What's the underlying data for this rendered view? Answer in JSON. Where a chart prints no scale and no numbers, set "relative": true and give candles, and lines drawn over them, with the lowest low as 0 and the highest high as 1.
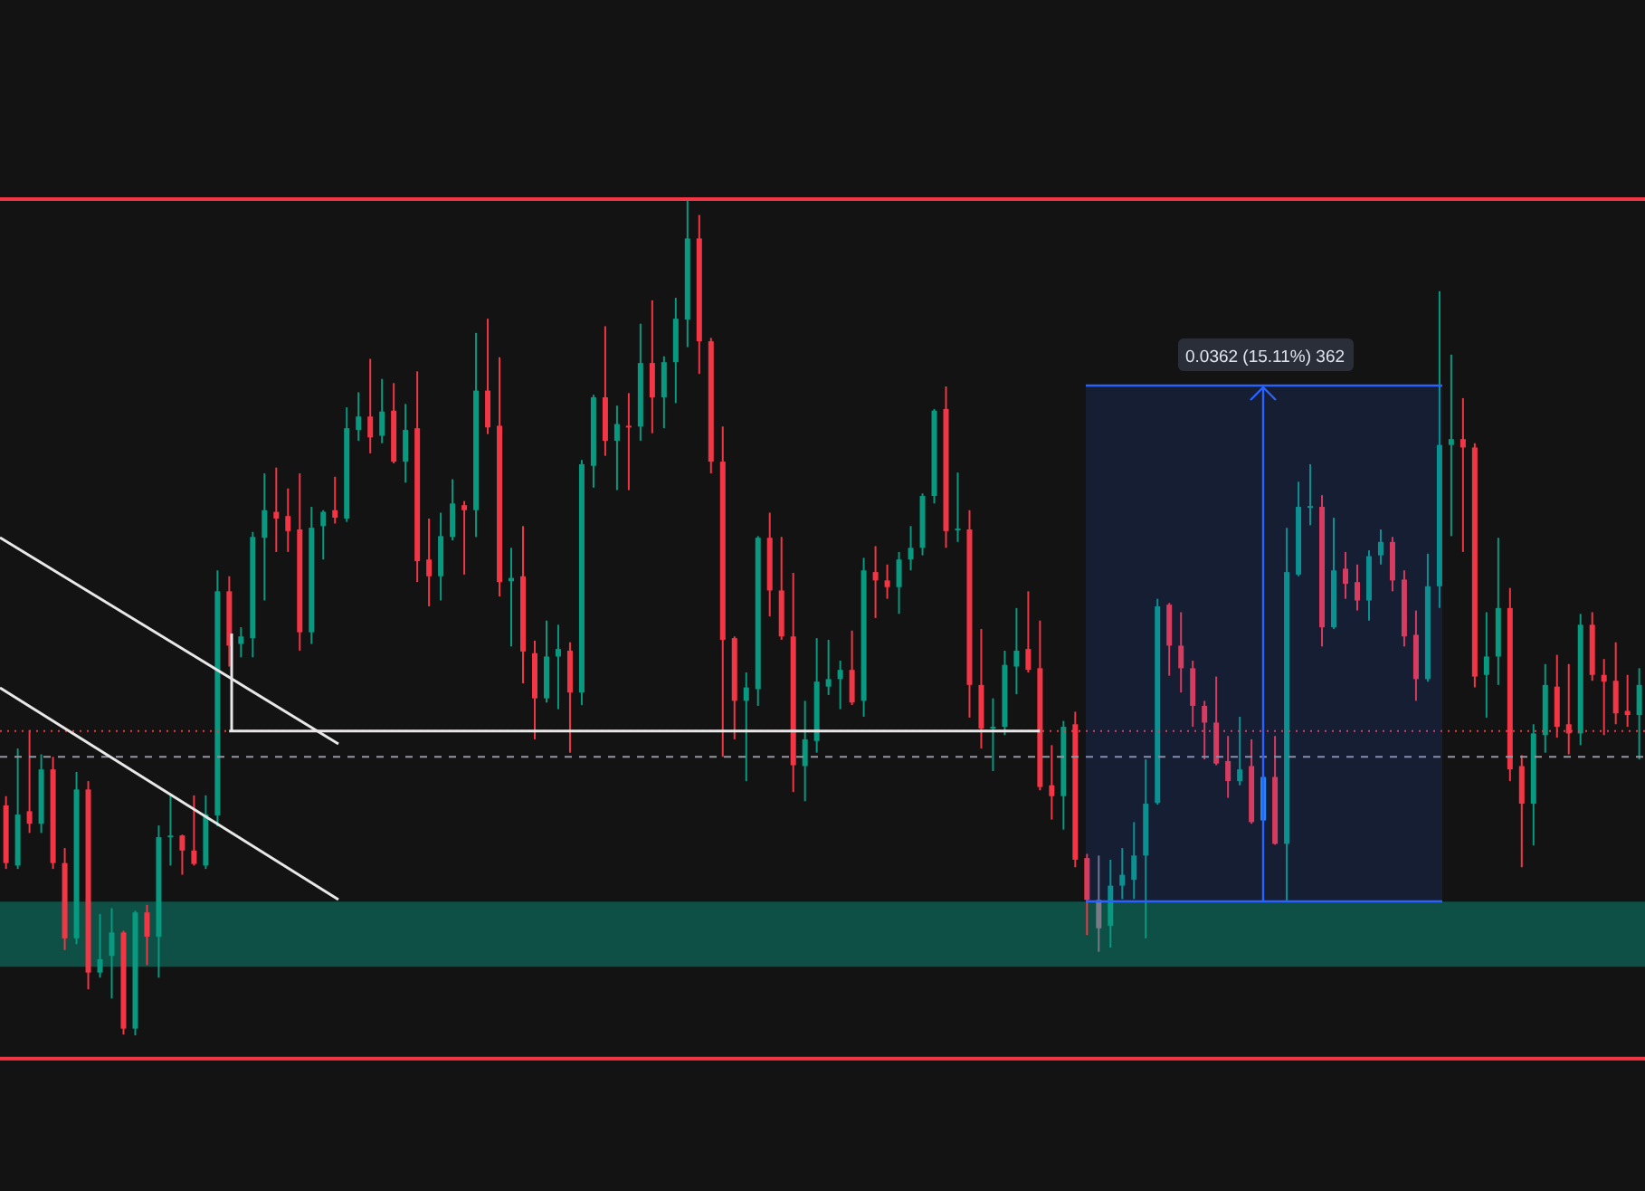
{
  "chart_data": {
    "type": "candlestick",
    "relative": true,
    "series": [
      {
        "type": "line",
        "color": "#e8e8e8",
        "values": [
          null,
          null,
          null,
          null,
          null,
          null,
          null,
          null,
          null,
          null,
          null,
          null,
          null,
          null,
          null,
          null,
          null,
          null,
          null,
          0.364,
          0.364,
          0.364,
          0.364,
          0.364,
          0.364,
          0.364,
          0.364,
          0.364,
          0.364,
          0.364,
          0.364,
          0.364,
          0.364,
          0.364,
          0.364,
          0.364,
          0.364,
          0.364,
          0.364,
          0.364,
          0.364,
          0.364,
          0.364,
          0.364,
          0.364,
          0.364,
          0.364,
          0.364,
          0.364,
          0.364,
          0.364,
          0.364,
          0.364,
          0.364,
          0.364,
          0.364,
          0.364,
          0.364,
          0.364,
          0.364,
          0.364,
          0.364,
          0.364,
          0.364,
          0.364,
          0.364,
          0.364,
          0.364,
          0.364,
          0.364,
          0.364,
          0.364,
          0.364,
          0.364,
          0.364,
          0.364,
          0.364,
          0.364,
          0.364,
          0.364,
          0.364,
          0.364,
          0.364,
          0.364,
          0.364,
          0.364,
          0.364,
          0.364,
          0.364,
          null,
          null,
          null,
          null,
          null,
          null,
          null,
          null,
          null,
          null,
          null,
          null,
          null,
          null,
          null,
          null,
          null,
          null,
          null,
          null,
          null,
          null,
          null,
          null,
          null,
          null,
          null,
          null,
          null,
          null,
          null,
          null,
          null,
          null,
          null,
          null,
          null,
          null,
          null,
          null,
          null,
          null,
          null,
          null,
          null,
          null,
          null,
          null,
          null,
          null,
          null
        ]
      }
    ],
    "categories": [
      null,
      null,
      null,
      null,
      null,
      null,
      null,
      null,
      null,
      null,
      null,
      null,
      null,
      null,
      null,
      null,
      null,
      null,
      null,
      null,
      null,
      null,
      null,
      null,
      null,
      null,
      null,
      null,
      null,
      null,
      null,
      null,
      null,
      null,
      null,
      null,
      null,
      null,
      null,
      null,
      null,
      null,
      null,
      null,
      null,
      null,
      null,
      null,
      null,
      null,
      null,
      null,
      null,
      null,
      null,
      null,
      null,
      null,
      null,
      null,
      null,
      null,
      null,
      null,
      null,
      null,
      null,
      null,
      null,
      null,
      null,
      null,
      null,
      null,
      null,
      null,
      null,
      null,
      null,
      null,
      null,
      null,
      null,
      null,
      null,
      null,
      null,
      null,
      null,
      null,
      null,
      null,
      null,
      null,
      null,
      null,
      null,
      null,
      null,
      null,
      null,
      null,
      null,
      null,
      null,
      null,
      null,
      null,
      null,
      null,
      null,
      null,
      null,
      null,
      null,
      null,
      null,
      null,
      null,
      null,
      null,
      null,
      null,
      null,
      null,
      null,
      null,
      null,
      null,
      null,
      null,
      null,
      null,
      null,
      null,
      null,
      null,
      null,
      null,
      null
    ],
    "ohlc": [
      [
        0.275,
        0.286,
        0.199,
        0.206
      ],
      [
        0.203,
        0.343,
        0.199,
        0.264
      ],
      [
        0.268,
        0.365,
        0.242,
        0.253
      ],
      [
        0.253,
        0.336,
        0.242,
        0.318
      ],
      [
        0.318,
        0.333,
        0.199,
        0.206
      ],
      [
        0.206,
        0.224,
        0.102,
        0.116
      ],
      [
        0.116,
        0.315,
        0.109,
        0.294
      ],
      [
        0.294,
        0.304,
        0.055,
        0.075
      ],
      [
        0.075,
        0.145,
        0.069,
        0.091
      ],
      [
        0.095,
        0.152,
        0.044,
        0.123
      ],
      [
        0.123,
        0.125,
        0.001,
        0.008
      ],
      [
        0.008,
        0.149,
        0,
        0.147
      ],
      [
        0.147,
        0.156,
        0.084,
        0.118
      ],
      [
        0.118,
        0.251,
        0.069,
        0.237
      ],
      [
        0.237,
        0.289,
        0.203,
        0.239
      ],
      [
        0.239,
        0.24,
        0.192,
        0.221
      ],
      [
        0.221,
        0.287,
        0.203,
        0.205
      ],
      [
        0.203,
        0.287,
        0.199,
        0.264
      ],
      [
        0.263,
        0.556,
        0.25,
        0.531
      ],
      [
        0.531,
        0.549,
        0.441,
        0.466
      ],
      [
        0.468,
        0.488,
        0.452,
        0.477
      ],
      [
        0.475,
        0.602,
        0.452,
        0.596
      ],
      [
        0.595,
        0.672,
        0.52,
        0.628
      ],
      [
        0.626,
        0.679,
        0.578,
        0.618
      ],
      [
        0.621,
        0.654,
        0.578,
        0.603
      ],
      [
        0.605,
        0.672,
        0.46,
        0.482
      ],
      [
        0.482,
        0.632,
        0.468,
        0.607
      ],
      [
        0.609,
        0.628,
        0.569,
        0.626
      ],
      [
        0.628,
        0.668,
        0.612,
        0.619
      ],
      [
        0.618,
        0.751,
        0.614,
        0.726
      ],
      [
        0.724,
        0.769,
        0.711,
        0.74
      ],
      [
        0.74,
        0.809,
        0.696,
        0.715
      ],
      [
        0.717,
        0.785,
        0.708,
        0.746
      ],
      [
        0.747,
        0.78,
        0.684,
        0.686
      ],
      [
        0.686,
        0.755,
        0.661,
        0.724
      ],
      [
        0.726,
        0.794,
        0.542,
        0.567
      ],
      [
        0.569,
        0.618,
        0.513,
        0.549
      ],
      [
        0.549,
        0.625,
        0.52,
        0.597
      ],
      [
        0.596,
        0.665,
        0.592,
        0.636
      ],
      [
        0.634,
        0.639,
        0.551,
        0.628
      ],
      [
        0.628,
        0.84,
        0.596,
        0.771
      ],
      [
        0.771,
        0.857,
        0.719,
        0.727
      ],
      [
        0.729,
        0.811,
        0.525,
        0.542
      ],
      [
        0.543,
        0.583,
        0.465,
        0.547
      ],
      [
        0.549,
        0.609,
        0.421,
        0.459
      ],
      [
        0.457,
        0.472,
        0.354,
        0.403
      ],
      [
        0.403,
        0.496,
        0.398,
        0.453
      ],
      [
        0.453,
        0.491,
        0.39,
        0.462
      ],
      [
        0.46,
        0.47,
        0.338,
        0.41
      ],
      [
        0.41,
        0.688,
        0.395,
        0.683
      ],
      [
        0.681,
        0.766,
        0.655,
        0.763
      ],
      [
        0.763,
        0.848,
        0.693,
        0.711
      ],
      [
        0.711,
        0.753,
        0.652,
        0.731
      ],
      [
        0.729,
        0.768,
        0.652,
        0.728
      ],
      [
        0.728,
        0.851,
        0.711,
        0.804
      ],
      [
        0.804,
        0.879,
        0.72,
        0.763
      ],
      [
        0.763,
        0.812,
        0.726,
        0.805
      ],
      [
        0.805,
        0.882,
        0.756,
        0.857
      ],
      [
        0.856,
        1,
        0.823,
        0.953
      ],
      [
        0.953,
        0.981,
        0.791,
        0.83
      ],
      [
        0.83,
        0.834,
        0.672,
        0.686
      ],
      [
        0.686,
        0.728,
        0.333,
        0.473
      ],
      [
        0.475,
        0.477,
        0.354,
        0.4
      ],
      [
        0.4,
        0.434,
        0.304,
        0.416
      ],
      [
        0.414,
        0.597,
        0.394,
        0.595
      ],
      [
        0.595,
        0.625,
        0.501,
        0.532
      ],
      [
        0.532,
        0.596,
        0.473,
        0.477
      ],
      [
        0.477,
        0.553,
        0.291,
        0.323
      ],
      [
        0.322,
        0.4,
        0.28,
        0.354
      ],
      [
        0.352,
        0.475,
        0.338,
        0.423
      ],
      [
        0.417,
        0.473,
        0.407,
        0.426
      ],
      [
        0.426,
        0.448,
        0.39,
        0.437
      ],
      [
        0.437,
        0.484,
        0.395,
        0.398
      ],
      [
        0.4,
        0.571,
        0.381,
        0.556
      ],
      [
        0.554,
        0.585,
        0.499,
        0.544
      ],
      [
        0.544,
        0.563,
        0.522,
        0.536
      ],
      [
        0.536,
        0.578,
        0.504,
        0.569
      ],
      [
        0.569,
        0.609,
        0.556,
        0.583
      ],
      [
        0.583,
        0.648,
        0.574,
        0.645
      ],
      [
        0.645,
        0.749,
        0.636,
        0.747
      ],
      [
        0.749,
        0.776,
        0.583,
        0.603
      ],
      [
        0.605,
        0.673,
        0.59,
        0.606
      ],
      [
        0.605,
        0.628,
        0.38,
        0.419
      ],
      [
        0.419,
        0.486,
        0.343,
        0.367
      ],
      [
        0.367,
        0.403,
        0.316,
        0.369
      ],
      [
        0.369,
        0.46,
        0.359,
        0.443
      ],
      [
        0.441,
        0.511,
        0.408,
        0.46
      ],
      [
        0.462,
        0.531,
        0.434,
        0.437
      ],
      [
        0.439,
        0.496,
        0.293,
        0.297
      ],
      [
        0.299,
        0.347,
        0.258,
        0.286
      ],
      [
        0.286,
        0.376,
        0.246,
        0.369
      ],
      [
        0.372,
        0.387,
        0.201,
        0.21
      ],
      [
        0.212,
        0.217,
        0.12,
        0.162
      ],
      [
        0.162,
        0.215,
        0.1,
        0.128
      ],
      [
        0.131,
        0.21,
        0.105,
        0.179
      ],
      [
        0.179,
        0.224,
        0.163,
        0.192
      ],
      [
        0.186,
        0.255,
        0.163,
        0.215
      ],
      [
        0.215,
        0.33,
        0.116,
        0.277
      ],
      [
        0.278,
        0.522,
        0.276,
        0.513
      ],
      [
        0.515,
        0.517,
        0.43,
        0.466
      ],
      [
        0.466,
        0.506,
        0.41,
        0.439
      ],
      [
        0.439,
        0.448,
        0.369,
        0.394
      ],
      [
        0.394,
        0.4,
        0.33,
        0.374
      ],
      [
        0.374,
        0.429,
        0.323,
        0.325
      ],
      [
        0.328,
        0.358,
        0.284,
        0.304
      ],
      [
        0.304,
        0.381,
        0.299,
        0.318
      ],
      [
        0.322,
        0.354,
        0.253,
        0.255
      ],
      [
        0.257,
        0.311,
        0.253,
        0.309
      ],
      [
        0.309,
        0.358,
        0.228,
        0.229
      ],
      [
        0.229,
        0.607,
        0.159,
        0.554
      ],
      [
        0.551,
        0.662,
        0.549,
        0.632
      ],
      [
        0.632,
        0.683,
        0.61,
        0.633
      ],
      [
        0.632,
        0.646,
        0.465,
        0.488
      ],
      [
        0.488,
        0.619,
        0.486,
        0.556
      ],
      [
        0.558,
        0.578,
        0.522,
        0.54
      ],
      [
        0.542,
        0.563,
        0.508,
        0.52
      ],
      [
        0.52,
        0.58,
        0.496,
        0.573
      ],
      [
        0.574,
        0.605,
        0.563,
        0.59
      ],
      [
        0.59,
        0.596,
        0.531,
        0.544
      ],
      [
        0.545,
        0.556,
        0.465,
        0.477
      ],
      [
        0.479,
        0.508,
        0.4,
        0.426
      ],
      [
        0.426,
        0.576,
        0.423,
        0.537
      ],
      [
        0.537,
        0.89,
        0.511,
        0.706
      ],
      [
        0.706,
        0.814,
        0.597,
        0.713
      ],
      [
        0.713,
        0.762,
        0.578,
        0.703
      ],
      [
        0.703,
        0.708,
        0.416,
        0.429
      ],
      [
        0.431,
        0.506,
        0.38,
        0.453
      ],
      [
        0.453,
        0.595,
        0.419,
        0.511
      ],
      [
        0.511,
        0.535,
        0.304,
        0.318
      ],
      [
        0.322,
        0.335,
        0.201,
        0.277
      ],
      [
        0.277,
        0.372,
        0.227,
        0.361
      ],
      [
        0.359,
        0.444,
        0.338,
        0.419
      ],
      [
        0.417,
        0.455,
        0.356,
        0.369
      ],
      [
        0.372,
        0.444,
        0.336,
        0.361
      ],
      [
        0.361,
        0.504,
        0.347,
        0.491
      ],
      [
        0.491,
        0.506,
        0.424,
        0.431
      ],
      [
        0.431,
        0.45,
        0.359,
        0.423
      ],
      [
        0.424,
        0.47,
        0.372,
        0.385
      ],
      [
        0.388,
        0.431,
        0.369,
        0.383
      ],
      [
        0.383,
        0.439,
        0.33,
        0.419
      ]
    ],
    "colors": [
      "#f23645",
      "#089981",
      "#f23645",
      "#089981",
      "#f23645",
      "#f23645",
      "#089981",
      "#f23645",
      "#089981",
      "#089981",
      "#f23645",
      "#089981",
      "#f23645",
      "#089981",
      "#089981",
      "#f23645",
      "#f23645",
      "#089981",
      "#089981",
      "#f23645",
      "#089981",
      "#089981",
      "#089981",
      "#f23645",
      "#f23645",
      "#f23645",
      "#089981",
      "#089981",
      "#f23645",
      "#089981",
      "#089981",
      "#f23645",
      "#089981",
      "#f23645",
      "#089981",
      "#f23645",
      "#f23645",
      "#089981",
      "#089981",
      "#f23645",
      "#089981",
      "#f23645",
      "#f23645",
      "#089981",
      "#f23645",
      "#f23645",
      "#089981",
      "#089981",
      "#f23645",
      "#089981",
      "#089981",
      "#f23645",
      "#089981",
      "#f23645",
      "#089981",
      "#f23645",
      "#089981",
      "#089981",
      "#089981",
      "#f23645",
      "#f23645",
      "#f23645",
      "#f23645",
      "#089981",
      "#089981",
      "#f23645",
      "#f23645",
      "#f23645",
      "#089981",
      "#089981",
      "#089981",
      "#089981",
      "#f23645",
      "#089981",
      "#f23645",
      "#f23645",
      "#089981",
      "#089981",
      "#089981",
      "#089981",
      "#f23645",
      "#089981",
      "#f23645",
      "#f23645",
      "#089981",
      "#089981",
      "#089981",
      "#f23645",
      "#f23645",
      "#f23645",
      "#089981",
      "#f23645",
      "#f23645",
      "#787b86",
      "#089981",
      "#089981",
      "#089981",
      "#089981",
      "#089981",
      "#f23645",
      "#f23645",
      "#f23645",
      "#f23645",
      "#f23645",
      "#f23645",
      "#089981",
      "#f23645",
      "#2196f3",
      "#f23645",
      "#089981",
      "#089981",
      "#089981",
      "#f23645",
      "#089981",
      "#f23645",
      "#f23645",
      "#089981",
      "#089981",
      "#f23645",
      "#f23645",
      "#f23645",
      "#089981",
      "#089981",
      "#089981",
      "#f23645",
      "#f23645",
      "#089981",
      "#089981",
      "#f23645",
      "#f23645",
      "#089981",
      "#089981",
      "#f23645",
      "#f23645",
      "#089981",
      "#f23645",
      "#f23645",
      "#f23645",
      "#f23645",
      "#089981"
    ],
    "ref_lines": [
      {
        "axis": "y",
        "value": 1,
        "color": "#f23645"
      },
      {
        "axis": "y",
        "value": -0.028,
        "color": "#f23645"
      },
      {
        "axis": "y",
        "value": 0.364,
        "color": "#f23645",
        "line_style": "dotted"
      },
      {
        "axis": "y",
        "value": 0.333,
        "color": "#9598a1",
        "line_style": "dashed"
      }
    ],
    "bands": [
      {
        "axis": "y",
        "from": 0.082,
        "to": 0.16,
        "color": "#0e5045"
      }
    ],
    "annotations": [
      "0.0362 (15.11%) 362"
    ]
  }
}
